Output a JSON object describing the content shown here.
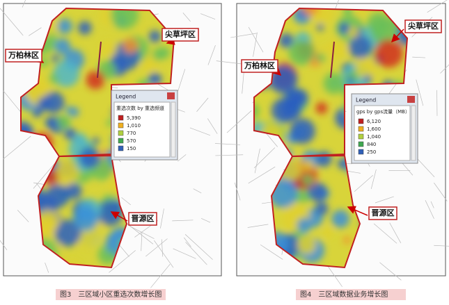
{
  "maps": [
    {
      "districts": [
        "尖草坪区",
        "万柏林区",
        "晋源区"
      ],
      "legend": {
        "title": "Legend",
        "field": "重选次数 by 重选频道",
        "items": [
          "5,390",
          "1,010",
          "770",
          "570",
          "150"
        ]
      },
      "caption": "图3　三区域小区重选次数增长图"
    },
    {
      "districts": [
        "尖草坪区",
        "万柏林区",
        "晋源区"
      ],
      "legend": {
        "title": "Legend",
        "field": "gps by gps流量（MB）",
        "items": [
          "6,120",
          "1,600",
          "1,040",
          "840",
          "250"
        ]
      },
      "caption": "图4　三区域数据业务增长图"
    }
  ]
}
